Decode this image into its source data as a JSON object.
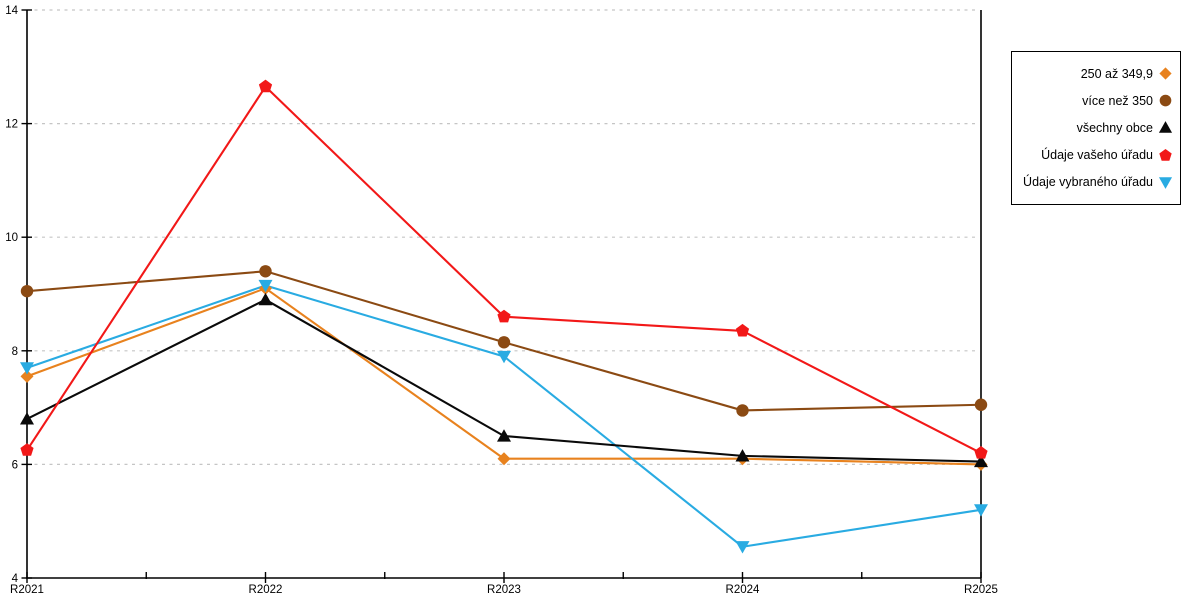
{
  "chart_data": {
    "type": "line",
    "title": "",
    "xlabel": "",
    "ylabel": "",
    "categories": [
      "R2021",
      "R2022",
      "R2023",
      "R2024",
      "R2025"
    ],
    "series": [
      {
        "name": "250 až 349,9",
        "marker": "diamond",
        "color": "#E8821E",
        "values": [
          7.55,
          9.1,
          6.1,
          6.1,
          6.0
        ]
      },
      {
        "name": "více než 350",
        "marker": "circle",
        "color": "#8B4A13",
        "values": [
          9.05,
          9.4,
          8.15,
          6.95,
          7.05
        ]
      },
      {
        "name": "všechny obce",
        "marker": "triangle-up",
        "color": "#0A0A0A",
        "values": [
          6.8,
          8.9,
          6.5,
          6.15,
          6.05
        ]
      },
      {
        "name": "Údaje vašeho úřadu",
        "marker": "pentagon",
        "color": "#F21818",
        "values": [
          6.25,
          12.65,
          8.6,
          8.35,
          6.2
        ]
      },
      {
        "name": "Údaje vybraného úřadu",
        "marker": "triangle-down",
        "color": "#29ABE2",
        "values": [
          7.7,
          9.15,
          7.9,
          4.55,
          5.2
        ]
      }
    ],
    "ylim": [
      4,
      14
    ],
    "y_ticks": [
      "4",
      "6",
      "8",
      "10",
      "12",
      "14"
    ],
    "grid": "dashed-horizontal-at-major-y-ticks",
    "legend_position": "right-outside",
    "colors": {
      "axis": "#000000",
      "gridline": "#C5C5C5",
      "background": "#ffffff",
      "tick_label": "#000000"
    }
  }
}
